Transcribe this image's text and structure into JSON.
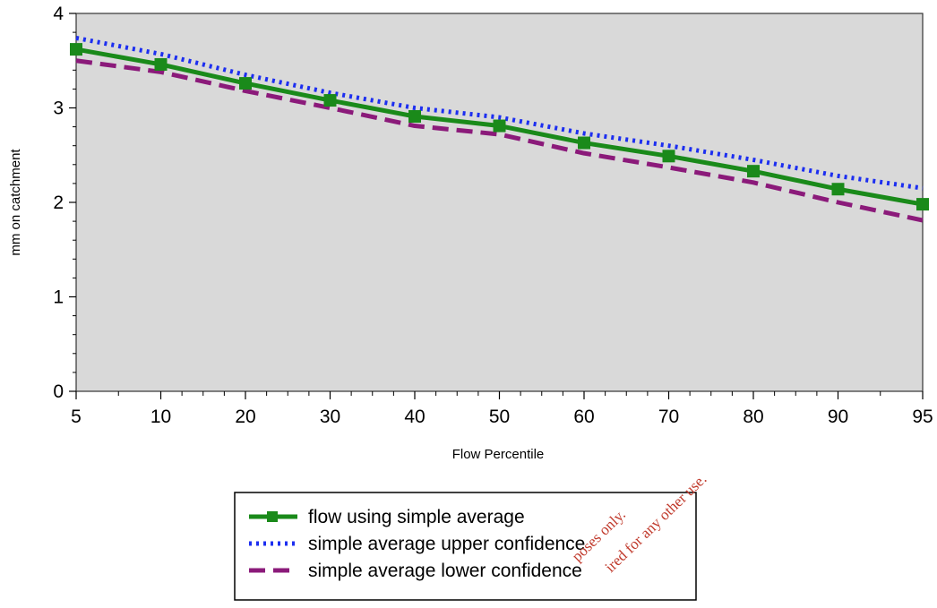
{
  "chart_data": {
    "type": "line",
    "title": "",
    "xlabel": "Flow Percentile",
    "ylabel": "mm on catchment",
    "categories": [
      "5",
      "10",
      "20",
      "30",
      "40",
      "50",
      "60",
      "70",
      "80",
      "90",
      "95"
    ],
    "ylim": [
      0,
      4
    ],
    "yticks": [
      "0",
      "1",
      "2",
      "3",
      "4"
    ],
    "grid": false,
    "plot_background": "#d9d9d9",
    "legend_position": "bottom-center",
    "series": [
      {
        "name": "flow using simple average",
        "color": "#1a8a1a",
        "style": "solid-with-square-markers",
        "values": [
          3.62,
          3.46,
          3.26,
          3.08,
          2.91,
          2.81,
          2.63,
          2.49,
          2.33,
          2.14,
          1.98
        ]
      },
      {
        "name": "simple average upper confidence",
        "color": "#1c2ef0",
        "style": "dotted",
        "values": [
          3.74,
          3.57,
          3.35,
          3.16,
          3.0,
          2.9,
          2.73,
          2.6,
          2.45,
          2.28,
          2.15
        ]
      },
      {
        "name": "simple average lower confidence",
        "color": "#8b1a7a",
        "style": "dashed",
        "values": [
          3.5,
          3.38,
          3.18,
          3.0,
          2.81,
          2.72,
          2.52,
          2.37,
          2.21,
          2.0,
          1.81
        ]
      }
    ]
  },
  "watermark": {
    "lines": [
      "poses only.",
      "ired for any other use."
    ],
    "color": "#c0392b"
  }
}
